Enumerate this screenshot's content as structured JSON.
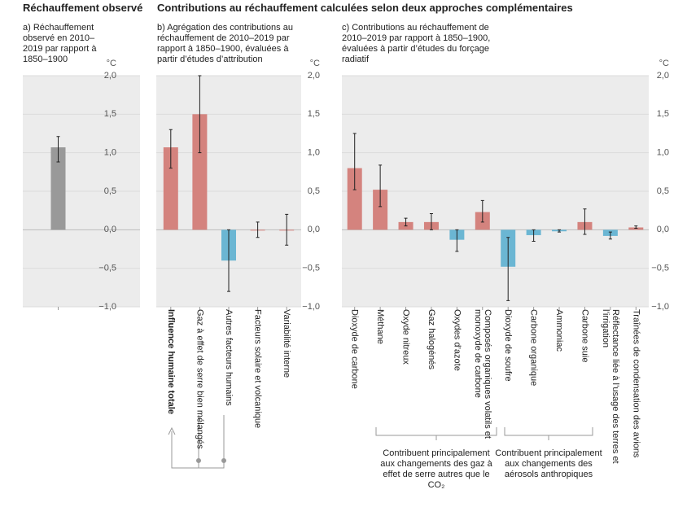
{
  "heading": "Contributions au réchauffement calculées selon deux approches complémentaires",
  "chart_data": [
    {
      "type": "bar",
      "title": "Réchauffement observé",
      "subtitle": "a) Réchauffement observé en 2010–2019 par rapport à 1850–1900",
      "unit": "°C",
      "categories": [
        null
      ],
      "values": [
        1.07
      ],
      "low": [
        0.88
      ],
      "high": [
        1.21
      ],
      "colors": [
        "#999999"
      ],
      "ylim": [
        -1,
        2
      ],
      "yticks": [
        {
          "value": -1,
          "label": "−1,0"
        },
        {
          "value": -0.5,
          "label": "−0,5"
        },
        {
          "value": 0,
          "label": "0,0"
        },
        {
          "value": 0.5,
          "label": "0,5"
        },
        {
          "value": 1,
          "label": "1,0"
        },
        {
          "value": 1.5,
          "label": "1,5"
        },
        {
          "value": 2,
          "label": "2,0"
        }
      ]
    },
    {
      "type": "bar",
      "subtitle": "b) Agrégation des contributions au réchauffement de 2010–2019 par rapport à 1850–1900, évaluées à partir d’études d’attribution",
      "unit": "°C",
      "categories": [
        "Influence humaine totale",
        "Gaz à effet de serre bien mélangés",
        "Autres facteurs humains",
        "Facteurs solaire et volcanique",
        "Variabilité interne"
      ],
      "values": [
        1.07,
        1.5,
        -0.4,
        0,
        0
      ],
      "low": [
        0.8,
        1.0,
        -0.8,
        -0.1,
        -0.2
      ],
      "high": [
        1.3,
        2.0,
        0,
        0.1,
        0.2
      ],
      "colors": [
        "#d4837e",
        "#d4837e",
        "#6bb6d3",
        "#d4837e",
        "#d4837e"
      ],
      "ylim": [
        -1,
        2
      ],
      "yticks": [
        {
          "value": -1,
          "label": "−1,0"
        },
        {
          "value": -0.5,
          "label": "−0,5"
        },
        {
          "value": 0,
          "label": "0,0"
        },
        {
          "value": 0.5,
          "label": "0,5"
        },
        {
          "value": 1,
          "label": "1,0"
        },
        {
          "value": 1.5,
          "label": "1,5"
        },
        {
          "value": 2,
          "label": "2,0"
        }
      ]
    },
    {
      "type": "bar",
      "subtitle": "c) Contributions au réchauffement de 2010–2019 par rapport à 1850–1900, évaluées à partir d’études du forçage radiatif",
      "unit": "°C",
      "categories": [
        "Dioxyde de carbone",
        "Méthane",
        "Oxyde nitreux",
        "Gaz halogénés",
        "Oxydes d’azote",
        "Composés organiques volatils et monoxyde de carbone",
        "Dioxyde de soufre",
        "Carbone organique",
        "Ammoniac",
        "Carbone suie",
        "Réflectance liée à l’usage des terres et l’irrigation",
        "Traînées de condensation des avions"
      ],
      "values": [
        0.8,
        0.52,
        0.1,
        0.1,
        -0.13,
        0.23,
        -0.48,
        -0.07,
        -0.02,
        0.1,
        -0.08,
        0.03
      ],
      "low": [
        0.52,
        0.3,
        0.05,
        0.0,
        -0.28,
        0.1,
        -0.92,
        -0.15,
        -0.03,
        -0.06,
        -0.12,
        0.02
      ],
      "high": [
        1.25,
        0.84,
        0.15,
        0.21,
        0.0,
        0.38,
        -0.1,
        0.0,
        0.0,
        0.27,
        -0.03,
        0.05
      ],
      "colors": [
        "#d4837e",
        "#d4837e",
        "#d4837e",
        "#d4837e",
        "#6bb6d3",
        "#d4837e",
        "#6bb6d3",
        "#6bb6d3",
        "#6bb6d3",
        "#d4837e",
        "#6bb6d3",
        "#d4837e"
      ],
      "ylim": [
        -1,
        2
      ],
      "yticks": [
        {
          "value": -1,
          "label": "−1,0"
        },
        {
          "value": -0.5,
          "label": "−0,5"
        },
        {
          "value": 0,
          "label": "0,0"
        },
        {
          "value": 0.5,
          "label": "0,5"
        },
        {
          "value": 1,
          "label": "1,0"
        },
        {
          "value": 1.5,
          "label": "1,5"
        },
        {
          "value": 2,
          "label": "2,0"
        }
      ],
      "annotations": [
        "Contribuent principalement aux changements des gaz à effet de serre autres que le CO₂",
        "Contribuent principalement aux changements des aérosols anthropiques"
      ]
    }
  ]
}
